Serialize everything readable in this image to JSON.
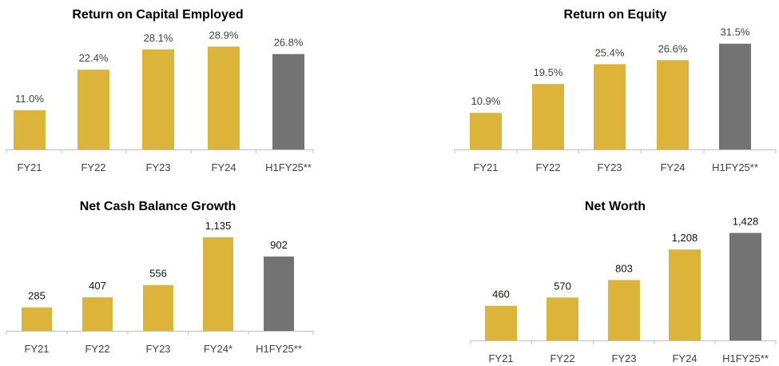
{
  "colors": {
    "gold": "#DDB43A",
    "gray": "#737373",
    "axis": "#BFBFBF"
  },
  "chart_data": [
    {
      "type": "bar",
      "title": "Return on Capital Employed",
      "categories": [
        "FY21",
        "FY22",
        "FY23",
        "FY24",
        "H1FY25**"
      ],
      "values": [
        11.0,
        22.4,
        28.1,
        28.9,
        26.8
      ],
      "labels": [
        "11.0%",
        "22.4%",
        "28.1%",
        "28.9%",
        "26.8%"
      ],
      "bar_colors": [
        "gold",
        "gold",
        "gold",
        "gold",
        "gray"
      ],
      "ylim": [
        0,
        33
      ],
      "grid": false
    },
    {
      "type": "bar",
      "title": "Return on Equity",
      "categories": [
        "FY21",
        "FY22",
        "FY23",
        "FY24",
        "H1FY25**"
      ],
      "values": [
        10.9,
        19.5,
        25.4,
        26.6,
        31.5
      ],
      "labels": [
        "10.9%",
        "19.5%",
        "25.4%",
        "26.6%",
        "31.5%"
      ],
      "bar_colors": [
        "gold",
        "gold",
        "gold",
        "gold",
        "gray"
      ],
      "ylim": [
        0,
        35
      ],
      "grid": false
    },
    {
      "type": "bar",
      "title": "Net Cash Balance Growth",
      "categories": [
        "FY21",
        "FY22",
        "FY23",
        "FY24*",
        "H1FY25**"
      ],
      "values": [
        285,
        407,
        556,
        1135,
        902
      ],
      "labels": [
        "285",
        "407",
        "556",
        "1,135",
        "902"
      ],
      "bar_colors": [
        "gold",
        "gold",
        "gold",
        "gold",
        "gray"
      ],
      "ylim": [
        0,
        1300
      ],
      "grid": false
    },
    {
      "type": "bar",
      "title": "Net Worth",
      "categories": [
        "FY21",
        "FY22",
        "FY23",
        "FY24",
        "H1FY25**"
      ],
      "values": [
        460,
        570,
        803,
        1208,
        1428
      ],
      "labels": [
        "460",
        "570",
        "803",
        "1,208",
        "1,428"
      ],
      "bar_colors": [
        "gold",
        "gold",
        "gold",
        "gold",
        "gray"
      ],
      "ylim": [
        0,
        1550
      ],
      "grid": false
    }
  ]
}
